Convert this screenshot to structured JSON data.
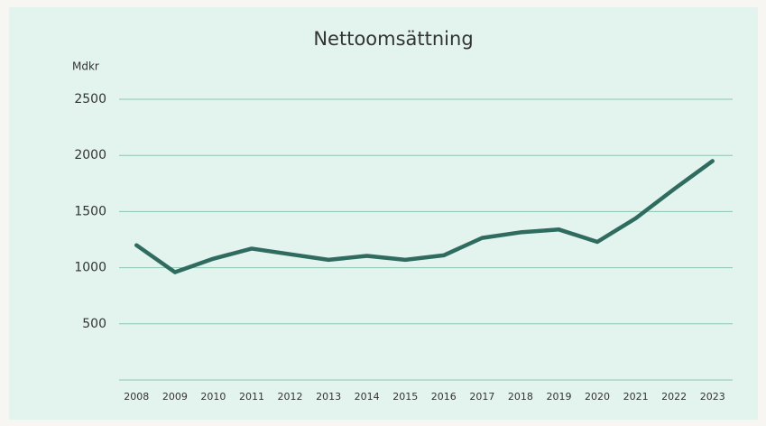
{
  "chart_data": {
    "type": "line",
    "title": "Nettoomsättning",
    "y_label": "Mdkr",
    "categories": [
      "2008",
      "2009",
      "2010",
      "2011",
      "2012",
      "2013",
      "2014",
      "2015",
      "2016",
      "2017",
      "2018",
      "2019",
      "2020",
      "2021",
      "2022",
      "2023"
    ],
    "series": [
      {
        "name": "Nettoomsättning",
        "color": "#2f6b5f",
        "values": [
          1200,
          960,
          1080,
          1170,
          1120,
          1070,
          1105,
          1070,
          1110,
          1265,
          1315,
          1340,
          1230,
          1440,
          1700,
          1950
        ]
      }
    ],
    "ylim": [
      0,
      2500
    ],
    "yticks": [
      500,
      1000,
      1500,
      2000,
      2500
    ],
    "grid": true
  }
}
